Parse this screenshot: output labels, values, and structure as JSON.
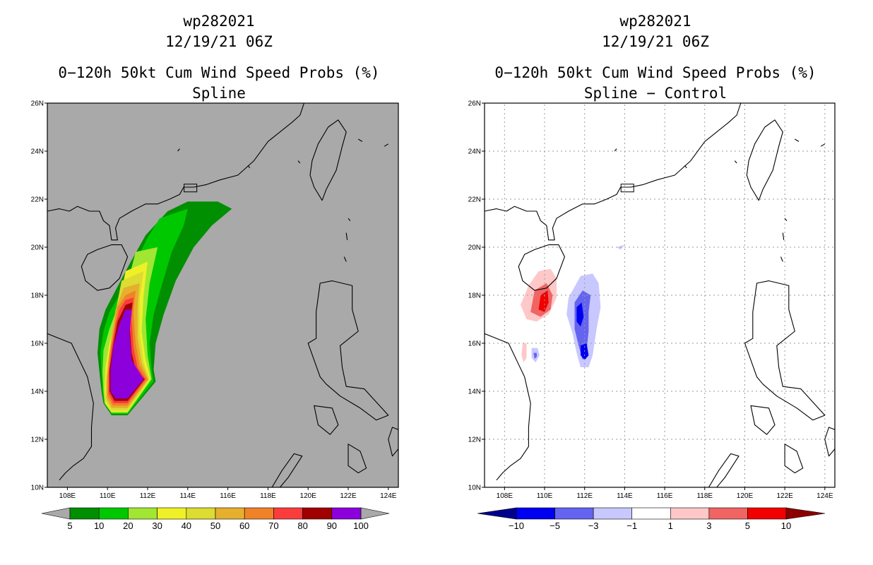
{
  "left_panel": {
    "storm_id": "wp282021",
    "datetime": "12/19/21 06Z",
    "product": "0−120h 50kt Cum Wind Speed Probs (%)",
    "method": "Spline",
    "background_color": "#a9a9a9",
    "colorbar": {
      "labels": [
        "5",
        "10",
        "20",
        "30",
        "40",
        "50",
        "60",
        "70",
        "80",
        "90",
        "100"
      ],
      "colors": [
        "#008f00",
        "#00c800",
        "#a0e632",
        "#f0f028",
        "#dcdc32",
        "#e6af2d",
        "#f08228",
        "#fa3c3c",
        "#a00000",
        "#8c00dc"
      ]
    }
  },
  "right_panel": {
    "storm_id": "wp282021",
    "datetime": "12/19/21 06Z",
    "product": "0−120h 50kt Cum Wind Speed Probs (%)",
    "method": "Spline − Control",
    "colorbar": {
      "labels": [
        "−10",
        "−5",
        "−3",
        "−1",
        "1",
        "3",
        "5",
        "10"
      ],
      "colors": [
        "#00008c",
        "#0000f0",
        "#6464f0",
        "#c8c8ff",
        "#ffffff",
        "#ffc8c8",
        "#f06464",
        "#f00000",
        "#8c0000"
      ]
    }
  },
  "axes": {
    "lat_labels": [
      "26N",
      "24N",
      "22N",
      "20N",
      "18N",
      "16N",
      "14N",
      "12N",
      "10N"
    ],
    "lon_labels": [
      "108E",
      "110E",
      "112E",
      "114E",
      "116E",
      "118E",
      "120E",
      "122E",
      "124E"
    ],
    "lat_range": [
      10,
      26
    ],
    "lon_range": [
      107,
      124.5
    ]
  },
  "chart_data": {
    "type": "map-contour",
    "field_left": "cumulative 50kt wind speed probability (%)",
    "field_right": "probability difference Spline minus Control (%)",
    "left_levels": [
      5,
      10,
      20,
      30,
      40,
      50,
      60,
      70,
      80,
      90,
      100
    ],
    "right_levels": [
      -10,
      -5,
      -3,
      -1,
      1,
      3,
      5,
      10
    ]
  }
}
